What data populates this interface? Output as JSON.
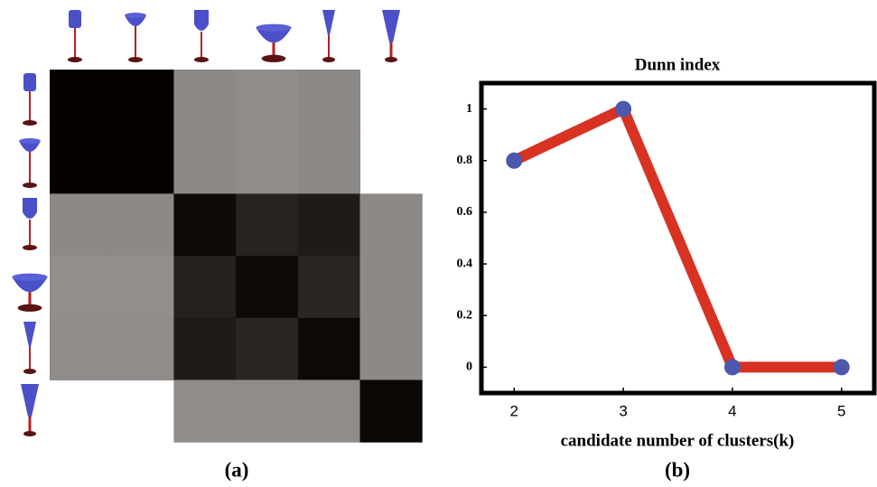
{
  "chart_data": [
    {
      "type": "heatmap",
      "caption": "(a)",
      "values": [
        [
          1,
          1,
          0.47,
          0.46,
          0.47,
          null
        ],
        [
          1,
          1,
          0.47,
          0.46,
          0.47,
          null
        ],
        [
          0.47,
          0.47,
          0.97,
          0.87,
          0.9,
          0.47
        ],
        [
          0.45,
          0.45,
          0.88,
          0.97,
          0.86,
          0.47
        ],
        [
          0.46,
          0.46,
          0.9,
          0.86,
          0.97,
          0.47
        ],
        [
          null,
          null,
          0.46,
          0.46,
          0.46,
          0.98
        ]
      ]
    },
    {
      "type": "line",
      "title": "Dunn index",
      "caption": "(b)",
      "xlabel": "candidate number of clusters(k)",
      "x": [
        2,
        3,
        4,
        5
      ],
      "values": [
        0.8,
        1,
        0,
        0
      ],
      "color": "#d83222",
      "marker_color": "#4b58ae",
      "xlim": [
        1.7,
        5.3
      ],
      "xticks": [
        2,
        3,
        4,
        5
      ],
      "ylim": [
        -0.1,
        1.1
      ],
      "yticks": [
        0,
        0.2,
        0.4,
        0.6,
        0.8,
        1
      ]
    }
  ]
}
